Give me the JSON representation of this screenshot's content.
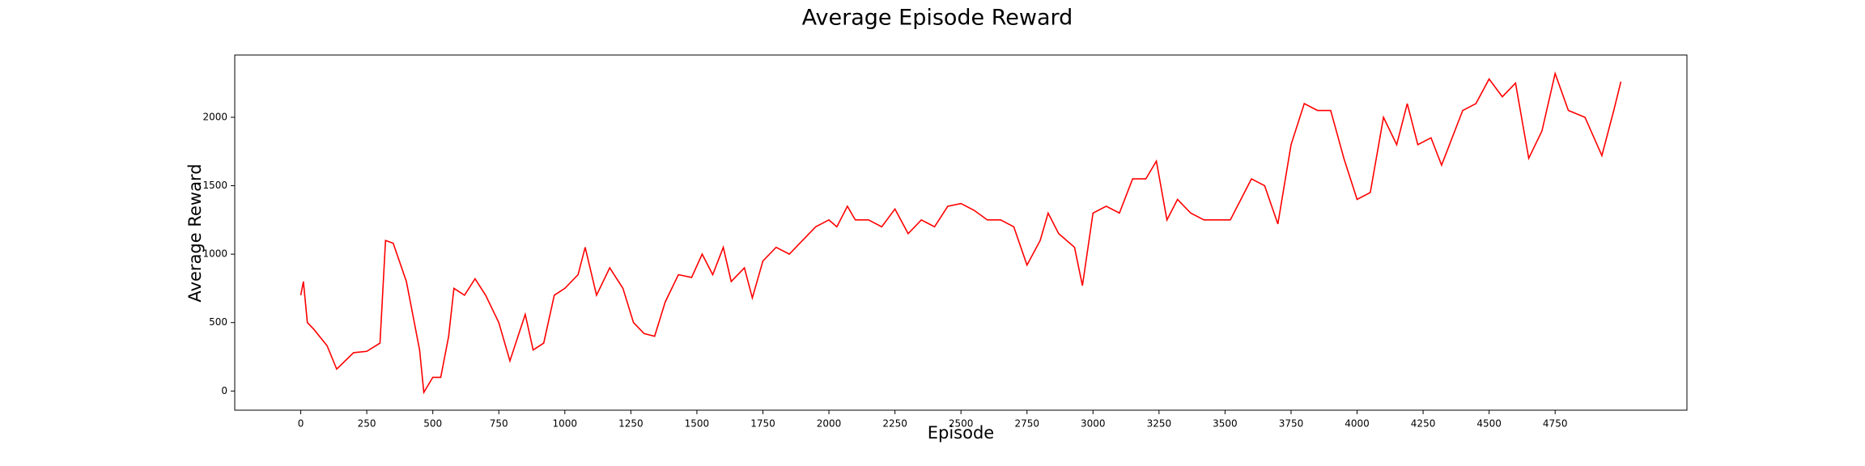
{
  "chart_data": {
    "type": "line",
    "title": "Average Episode Reward",
    "x_label": "Episode",
    "y_label": "Average Reward",
    "x": [
      0,
      10,
      25,
      50,
      100,
      136,
      200,
      250,
      300,
      321,
      350,
      400,
      450,
      466,
      500,
      530,
      560,
      580,
      620,
      660,
      700,
      750,
      792,
      850,
      880,
      920,
      960,
      1000,
      1050,
      1077,
      1120,
      1170,
      1220,
      1260,
      1300,
      1340,
      1380,
      1430,
      1480,
      1520,
      1560,
      1600,
      1630,
      1680,
      1710,
      1750,
      1800,
      1850,
      1900,
      1950,
      2000,
      2030,
      2070,
      2100,
      2150,
      2200,
      2250,
      2300,
      2350,
      2400,
      2450,
      2500,
      2550,
      2600,
      2650,
      2700,
      2750,
      2800,
      2830,
      2870,
      2930,
      2960,
      3000,
      3050,
      3100,
      3150,
      3200,
      3240,
      3280,
      3320,
      3370,
      3420,
      3470,
      3520,
      3560,
      3600,
      3650,
      3700,
      3750,
      3800,
      3850,
      3900,
      3950,
      4000,
      4050,
      4100,
      4150,
      4190,
      4230,
      4280,
      4320,
      4360,
      4400,
      4450,
      4500,
      4550,
      4600,
      4650,
      4700,
      4750,
      4800,
      4863,
      4927,
      4972,
      4999
    ],
    "series": [
      {
        "name": "Average Reward",
        "color": "#ff0000",
        "values": [
          700,
          800,
          500,
          450,
          330,
          160,
          280,
          290,
          350,
          1100,
          1080,
          800,
          300,
          -10,
          100,
          100,
          400,
          750,
          700,
          820,
          700,
          500,
          220,
          560,
          300,
          350,
          700,
          750,
          850,
          1050,
          700,
          900,
          750,
          500,
          420,
          400,
          650,
          850,
          830,
          1000,
          850,
          1050,
          800,
          900,
          680,
          950,
          1050,
          1000,
          1100,
          1200,
          1250,
          1200,
          1350,
          1250,
          1250,
          1200,
          1330,
          1150,
          1250,
          1200,
          1350,
          1370,
          1320,
          1250,
          1250,
          1200,
          920,
          1100,
          1300,
          1150,
          1050,
          770,
          1300,
          1350,
          1300,
          1550,
          1550,
          1680,
          1250,
          1400,
          1300,
          1250,
          1250,
          1250,
          1400,
          1550,
          1500,
          1220,
          1800,
          2100,
          2050,
          2050,
          1700,
          1400,
          1450,
          2000,
          1800,
          2100,
          1800,
          1850,
          1650,
          1850,
          2050,
          2100,
          2280,
          2150,
          2250,
          1700,
          1900,
          2320,
          2050,
          2000,
          1720,
          2050,
          2260
        ]
      }
    ],
    "xlim": [
      -250,
      5249
    ],
    "ylim": [
      -140,
      2455
    ],
    "xticks": [
      0,
      250,
      500,
      750,
      1000,
      1250,
      1500,
      1750,
      2000,
      2250,
      2500,
      2750,
      3000,
      3250,
      3500,
      3750,
      4000,
      4250,
      4500,
      4750
    ],
    "yticks": [
      0,
      500,
      1000,
      1500,
      2000
    ],
    "grid": false
  }
}
